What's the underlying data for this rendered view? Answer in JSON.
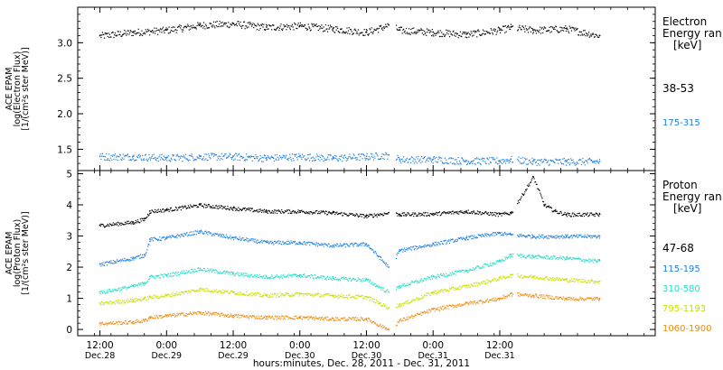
{
  "chart_data": [
    {
      "type": "scatter",
      "panel": "electron",
      "ylabel_lines": [
        "ACE EPAM",
        "log(Electron Flux)",
        "[1/(cm²s ster MeV)]"
      ],
      "ylim": [
        1.2,
        3.5
      ],
      "yticks": [
        1.5,
        2.0,
        2.5,
        3.0
      ],
      "ytick_labels": [
        "1.5",
        "2.0",
        "2.5",
        "3.0"
      ],
      "legend_title_lines": [
        "Electron",
        "Energy ran",
        "[keV]"
      ],
      "series": [
        {
          "name": "38-53",
          "color": "#000000",
          "x": [
            0,
            6,
            12,
            18,
            24,
            30,
            36,
            42,
            48,
            52,
            54,
            60,
            66,
            72,
            74,
            78,
            84,
            90
          ],
          "y": [
            3.1,
            3.15,
            3.18,
            3.25,
            3.27,
            3.22,
            3.24,
            3.2,
            3.15,
            3.25,
            3.18,
            3.15,
            3.12,
            3.18,
            3.22,
            3.18,
            3.2,
            3.1
          ]
        },
        {
          "name": "175-315",
          "color": "#1e7fe0",
          "x": [
            0,
            6,
            12,
            18,
            24,
            30,
            36,
            42,
            48,
            52,
            54,
            60,
            66,
            72,
            74,
            78,
            84,
            90
          ],
          "y": [
            1.4,
            1.4,
            1.38,
            1.4,
            1.4,
            1.38,
            1.4,
            1.38,
            1.4,
            1.42,
            1.36,
            1.36,
            1.34,
            1.34,
            1.36,
            1.33,
            1.33,
            1.33
          ]
        }
      ]
    },
    {
      "type": "scatter",
      "panel": "proton",
      "ylabel_lines": [
        "ACE EPAM",
        "log(Proton Flux)",
        "[1/(cm²s ster MeV)]"
      ],
      "ylim": [
        -0.2,
        5.1
      ],
      "yticks": [
        0,
        1,
        2,
        3,
        4,
        5
      ],
      "ytick_labels": [
        "0",
        "1",
        "2",
        "3",
        "4",
        "5"
      ],
      "legend_title_lines": [
        "Proton",
        "Energy ran",
        "[keV]"
      ],
      "series": [
        {
          "name": "47-68",
          "color": "#000000",
          "x": [
            0,
            6,
            8,
            9,
            12,
            18,
            24,
            30,
            36,
            42,
            48,
            52,
            54,
            60,
            66,
            72,
            74,
            78,
            80,
            82,
            84,
            90
          ],
          "y": [
            3.35,
            3.45,
            3.55,
            3.8,
            3.85,
            4.0,
            3.9,
            3.8,
            3.8,
            3.75,
            3.65,
            3.75,
            3.7,
            3.72,
            3.8,
            3.7,
            3.75,
            4.9,
            4.0,
            3.8,
            3.7,
            3.7
          ]
        },
        {
          "name": "115-195",
          "color": "#1e7fe0",
          "x": [
            0,
            6,
            8,
            9,
            12,
            18,
            24,
            30,
            36,
            42,
            48,
            52,
            54,
            60,
            66,
            72,
            74,
            78,
            84,
            90
          ],
          "y": [
            2.1,
            2.3,
            2.4,
            2.9,
            2.95,
            3.15,
            2.95,
            2.8,
            2.8,
            2.7,
            2.75,
            2.0,
            2.55,
            2.75,
            2.95,
            3.1,
            3.05,
            3.0,
            3.0,
            3.0
          ]
        },
        {
          "name": "310-580",
          "color": "#22ddc8",
          "x": [
            0,
            6,
            8,
            9,
            12,
            18,
            24,
            30,
            36,
            42,
            48,
            52,
            54,
            60,
            66,
            72,
            74,
            78,
            84,
            90
          ],
          "y": [
            1.2,
            1.4,
            1.5,
            1.7,
            1.75,
            1.95,
            1.8,
            1.7,
            1.75,
            1.65,
            1.6,
            1.2,
            1.4,
            1.7,
            1.9,
            2.2,
            2.4,
            2.35,
            2.3,
            2.2
          ]
        },
        {
          "name": "795-1193",
          "color": "#c8e000",
          "x": [
            0,
            6,
            8,
            9,
            12,
            18,
            24,
            30,
            36,
            42,
            48,
            52,
            54,
            60,
            66,
            72,
            74,
            78,
            84,
            90
          ],
          "y": [
            0.85,
            0.95,
            1.0,
            1.05,
            1.1,
            1.3,
            1.2,
            1.1,
            1.15,
            1.1,
            1.05,
            0.7,
            0.8,
            1.2,
            1.4,
            1.65,
            1.75,
            1.7,
            1.6,
            1.55
          ]
        },
        {
          "name": "1060-1900",
          "color": "#ee8a10",
          "x": [
            0,
            6,
            8,
            9,
            12,
            18,
            24,
            30,
            36,
            42,
            48,
            52,
            54,
            60,
            66,
            72,
            74,
            78,
            84,
            90
          ],
          "y": [
            0.2,
            0.25,
            0.3,
            0.4,
            0.45,
            0.55,
            0.45,
            0.4,
            0.4,
            0.35,
            0.35,
            0.0,
            0.3,
            0.65,
            0.85,
            1.0,
            1.15,
            1.1,
            1.0,
            1.0
          ]
        }
      ]
    }
  ],
  "x_axis": {
    "xlim": [
      -4,
      100
    ],
    "ticks": [
      {
        "x": 0,
        "time": "12:00",
        "date": "Dec.28"
      },
      {
        "x": 12,
        "time": "0:00",
        "date": "Dec.29"
      },
      {
        "x": 24,
        "time": "12:00",
        "date": "Dec.29"
      },
      {
        "x": 36,
        "time": "0:00",
        "date": "Dec.30"
      },
      {
        "x": 48,
        "time": "12:00",
        "date": "Dec.30"
      },
      {
        "x": 60,
        "time": "0:00",
        "date": "Dec.31"
      },
      {
        "x": 72,
        "time": "12:00",
        "date": "Dec.31"
      }
    ],
    "xlabel": "hours:minutes, Dec. 28, 2011 - Dec. 31, 2011",
    "data_start_x": 0,
    "data_end_x": 90
  }
}
